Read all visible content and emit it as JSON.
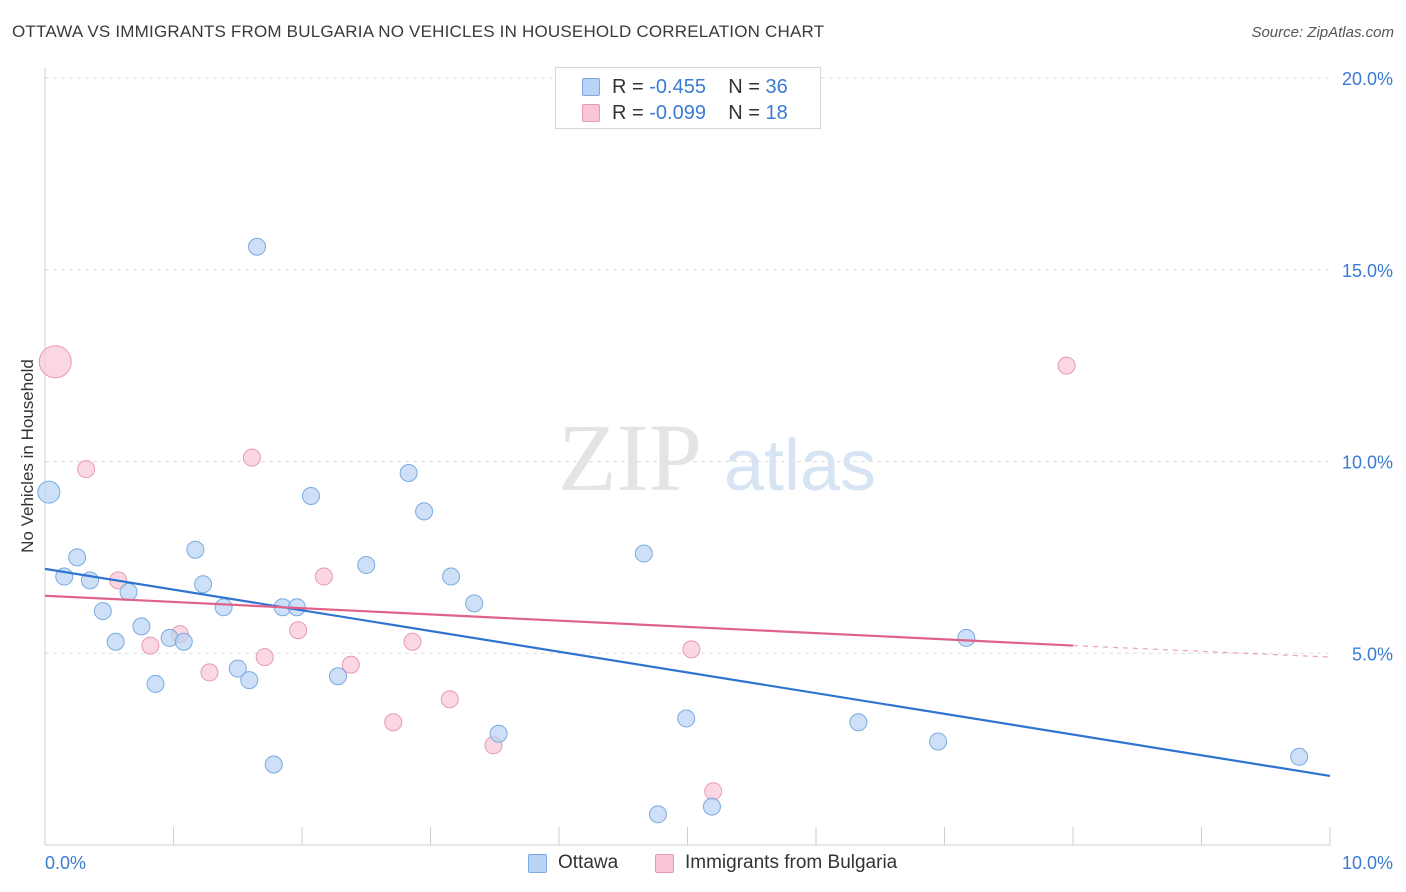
{
  "title": "OTTAWA VS IMMIGRANTS FROM BULGARIA NO VEHICLES IN HOUSEHOLD CORRELATION CHART",
  "source": "Source: ZipAtlas.com",
  "watermark": {
    "zip": "ZIP",
    "atlas": "atlas"
  },
  "legend_top": {
    "rows": [
      {
        "r_label": "R = ",
        "r_value": "-0.455",
        "n_label": "N = ",
        "n_value": "36"
      },
      {
        "r_label": "R = ",
        "r_value": "-0.099",
        "n_label": "N = ",
        "n_value": "18"
      }
    ]
  },
  "colors": {
    "ottawa_fill": "#b8d3f4",
    "ottawa_stroke": "#7aaae0",
    "ottawa_line": "#2f74d0",
    "bulgaria_fill": "#f9c6d6",
    "bulgaria_stroke": "#e899b2",
    "bulgaria_line": "#e0628a",
    "tick_label": "#3a7bd5",
    "grid": "#dedede"
  },
  "chart_data": {
    "type": "scatter",
    "title": "OTTAWA VS IMMIGRANTS FROM BULGARIA NO VEHICLES IN HOUSEHOLD CORRELATION CHART",
    "xlabel": "",
    "ylabel": "No Vehicles in Household",
    "xlim": [
      0,
      10
    ],
    "ylim": [
      0,
      20
    ],
    "x_tick_labels": [
      "0.0%",
      "10.0%"
    ],
    "y_ticks": [
      5,
      10,
      15,
      20
    ],
    "y_tick_labels": [
      "5.0%",
      "10.0%",
      "15.0%",
      "20.0%"
    ],
    "grid": true,
    "legend_placement": "bottom",
    "series": [
      {
        "name": "Ottawa",
        "points": [
          {
            "x": 0.03,
            "y": 9.2,
            "r": 11
          },
          {
            "x": 1.65,
            "y": 15.6
          },
          {
            "x": 0.15,
            "y": 7.0
          },
          {
            "x": 0.25,
            "y": 7.5
          },
          {
            "x": 0.35,
            "y": 6.9
          },
          {
            "x": 0.45,
            "y": 6.1
          },
          {
            "x": 0.55,
            "y": 5.3
          },
          {
            "x": 0.65,
            "y": 6.6
          },
          {
            "x": 0.75,
            "y": 5.7
          },
          {
            "x": 0.86,
            "y": 4.2
          },
          {
            "x": 0.97,
            "y": 5.4
          },
          {
            "x": 1.08,
            "y": 5.3
          },
          {
            "x": 1.17,
            "y": 7.7
          },
          {
            "x": 1.23,
            "y": 6.8
          },
          {
            "x": 1.39,
            "y": 6.2
          },
          {
            "x": 1.5,
            "y": 4.6
          },
          {
            "x": 1.59,
            "y": 4.3
          },
          {
            "x": 1.78,
            "y": 2.1
          },
          {
            "x": 1.85,
            "y": 6.2
          },
          {
            "x": 1.96,
            "y": 6.2
          },
          {
            "x": 2.07,
            "y": 9.1
          },
          {
            "x": 2.28,
            "y": 4.4
          },
          {
            "x": 2.5,
            "y": 7.3
          },
          {
            "x": 2.83,
            "y": 9.7
          },
          {
            "x": 2.95,
            "y": 8.7
          },
          {
            "x": 3.16,
            "y": 7.0
          },
          {
            "x": 3.34,
            "y": 6.3
          },
          {
            "x": 3.53,
            "y": 2.9
          },
          {
            "x": 4.66,
            "y": 7.6
          },
          {
            "x": 4.77,
            "y": 0.8
          },
          {
            "x": 4.99,
            "y": 3.3
          },
          {
            "x": 5.19,
            "y": 1.0
          },
          {
            "x": 6.33,
            "y": 3.2
          },
          {
            "x": 6.95,
            "y": 2.7
          },
          {
            "x": 7.17,
            "y": 5.4
          },
          {
            "x": 9.76,
            "y": 2.3
          }
        ],
        "trend": {
          "x": [
            0,
            10
          ],
          "y": [
            7.2,
            1.8
          ]
        }
      },
      {
        "name": "Immigrants from Bulgaria",
        "points": [
          {
            "x": 0.08,
            "y": 12.6,
            "r": 16
          },
          {
            "x": 0.32,
            "y": 9.8
          },
          {
            "x": 0.57,
            "y": 6.9
          },
          {
            "x": 0.82,
            "y": 5.2
          },
          {
            "x": 1.05,
            "y": 5.5
          },
          {
            "x": 1.28,
            "y": 4.5
          },
          {
            "x": 1.61,
            "y": 10.1
          },
          {
            "x": 1.71,
            "y": 4.9
          },
          {
            "x": 1.97,
            "y": 5.6
          },
          {
            "x": 2.17,
            "y": 7.0
          },
          {
            "x": 2.38,
            "y": 4.7
          },
          {
            "x": 2.71,
            "y": 3.2
          },
          {
            "x": 2.86,
            "y": 5.3
          },
          {
            "x": 3.15,
            "y": 3.8
          },
          {
            "x": 3.49,
            "y": 2.6
          },
          {
            "x": 5.03,
            "y": 5.1
          },
          {
            "x": 5.2,
            "y": 1.4
          },
          {
            "x": 7.95,
            "y": 12.5
          }
        ],
        "trend": {
          "x": [
            0,
            8.0
          ],
          "y": [
            6.5,
            5.2
          ]
        },
        "trend_dashed": {
          "x": [
            8.0,
            10
          ],
          "y": [
            5.2,
            4.9
          ]
        }
      }
    ]
  }
}
